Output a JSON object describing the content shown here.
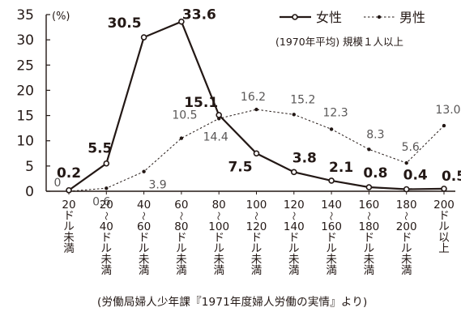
{
  "chart_data": {
    "type": "line",
    "y_unit": "(%)",
    "ylim": [
      0,
      35
    ],
    "y_ticks": [
      0,
      5,
      10,
      15,
      20,
      25,
      30,
      35
    ],
    "categories": [
      "20ドル未満",
      "20〜40ドル未満",
      "40〜60ドル未満",
      "60〜80ドル未満",
      "80〜100ドル未満",
      "100〜120ドル未満",
      "120〜140ドル未満",
      "140〜160ドル未満",
      "160〜180ドル未満",
      "180〜200ドル未満",
      "200ドル以上"
    ],
    "category_label_lines": [
      [
        "20",
        "ド",
        "ル",
        "未",
        "満"
      ],
      [
        "20",
        "〜",
        "40",
        "ド",
        "ル",
        "未",
        "満"
      ],
      [
        "40",
        "〜",
        "60",
        "ド",
        "ル",
        "未",
        "満"
      ],
      [
        "60",
        "〜",
        "80",
        "ド",
        "ル",
        "未",
        "満"
      ],
      [
        "80",
        "〜",
        "100",
        "ド",
        "ル",
        "未",
        "満"
      ],
      [
        "100",
        "〜",
        "120",
        "ド",
        "ル",
        "未",
        "満"
      ],
      [
        "120",
        "〜",
        "140",
        "ド",
        "ル",
        "未",
        "満"
      ],
      [
        "140",
        "〜",
        "160",
        "ド",
        "ル",
        "未",
        "満"
      ],
      [
        "160",
        "〜",
        "180",
        "ド",
        "ル",
        "未",
        "満"
      ],
      [
        "180",
        "〜",
        "200",
        "ド",
        "ル",
        "未",
        "満"
      ],
      [
        "200",
        "ド",
        "ル",
        "以",
        "上"
      ]
    ],
    "series": [
      {
        "name": "女性",
        "style": "solid",
        "color": "#231815",
        "values": [
          0.2,
          5.5,
          30.5,
          33.6,
          15.1,
          7.5,
          3.8,
          2.1,
          0.8,
          0.4,
          0.5
        ],
        "labels": [
          "0.2",
          "5.5",
          "30.5",
          "33.6",
          "15.1",
          "7.5",
          "3.8",
          "2.1",
          "0.8",
          "0.4",
          "0.5"
        ]
      },
      {
        "name": "男性",
        "style": "dotted",
        "color": "#231815",
        "values": [
          0,
          0.6,
          3.9,
          10.5,
          14.4,
          16.2,
          15.2,
          12.3,
          8.3,
          5.6,
          13.0
        ],
        "labels": [
          "0",
          "0.6",
          "3.9",
          "10.5",
          "14.4",
          "16.2",
          "15.2",
          "12.3",
          "8.3",
          "5.6",
          "13.0"
        ]
      }
    ],
    "legend_position": "top-right",
    "note": "(1970年平均) 規模１人以上",
    "grid": false
  },
  "source": "(労働局婦人少年課『1971年度婦人労働の実情』より)"
}
